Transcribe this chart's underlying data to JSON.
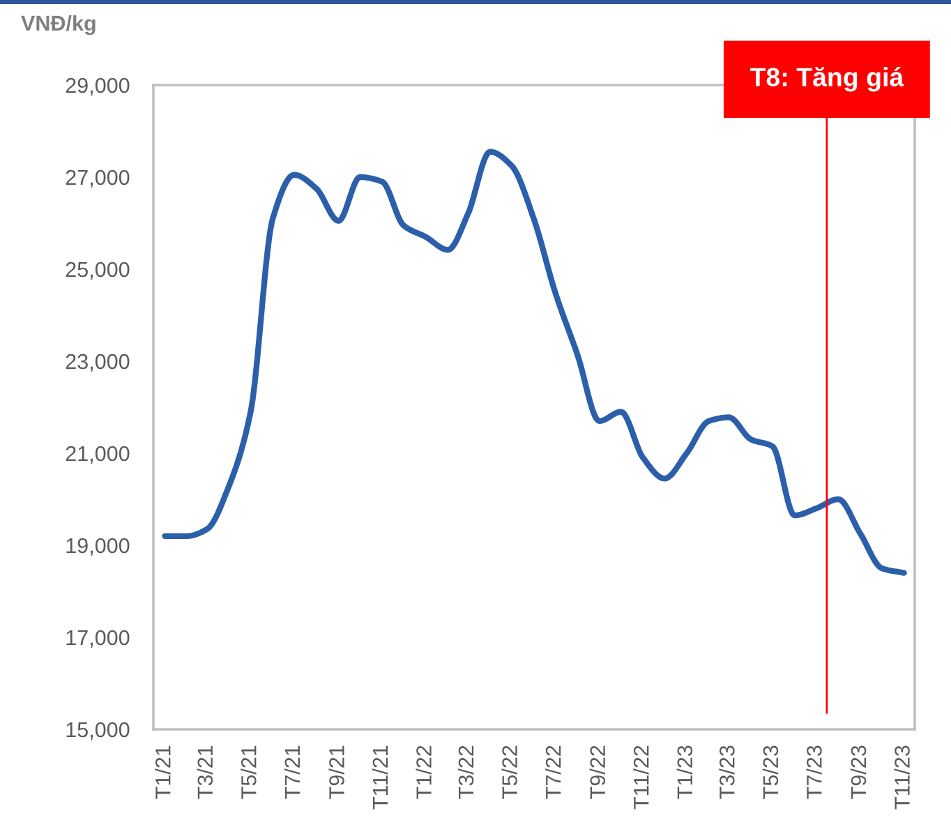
{
  "chart_data": {
    "type": "line",
    "ylabel": "VNĐ/kg",
    "x": [
      "2021-01",
      "2021-02",
      "2021-03",
      "2021-04",
      "2021-05",
      "2021-06",
      "2021-07",
      "2021-08",
      "2021-09",
      "2021-10",
      "2021-11",
      "2021-12",
      "2022-01",
      "2022-02",
      "2022-03",
      "2022-04",
      "2022-05",
      "2022-06",
      "2022-07",
      "2022-08",
      "2022-09",
      "2022-10",
      "2022-11",
      "2022-12",
      "2023-01",
      "2023-02",
      "2023-03",
      "2023-04",
      "2023-05",
      "2023-06",
      "2023-07",
      "2023-08",
      "2023-09",
      "2023-10",
      "2023-11"
    ],
    "series": [
      {
        "color": "#2c5faa",
        "values": [
          19200,
          19200,
          19350,
          20300,
          21900,
          26100,
          27050,
          26750,
          26050,
          27000,
          26900,
          25950,
          25700,
          25420,
          26200,
          27550,
          27250,
          26100,
          24500,
          23150,
          21700,
          21900,
          20900,
          20450,
          21000,
          21700,
          21780,
          21300,
          21150,
          19650,
          19800,
          20000,
          19250,
          18500,
          18400
        ]
      }
    ],
    "xlim": [
      "2020-12-16",
      "2023-11-16"
    ],
    "xticks": [
      {
        "value": "2021-01",
        "label": "T1/21"
      },
      {
        "value": "2021-03",
        "label": "T3/21"
      },
      {
        "value": "2021-05",
        "label": "T5/21"
      },
      {
        "value": "2021-07",
        "label": "T7/21"
      },
      {
        "value": "2021-09",
        "label": "T9/21"
      },
      {
        "value": "2021-11",
        "label": "T11/21"
      },
      {
        "value": "2022-01",
        "label": "T1/22"
      },
      {
        "value": "2022-03",
        "label": "T3/22"
      },
      {
        "value": "2022-05",
        "label": "T5/22"
      },
      {
        "value": "2022-07",
        "label": "T7/22"
      },
      {
        "value": "2022-09",
        "label": "T9/22"
      },
      {
        "value": "2022-11",
        "label": "T11/22"
      },
      {
        "value": "2023-01",
        "label": "T1/23"
      },
      {
        "value": "2023-03",
        "label": "T3/23"
      },
      {
        "value": "2023-05",
        "label": "T5/23"
      },
      {
        "value": "2023-07",
        "label": "T7/23"
      },
      {
        "value": "2023-09",
        "label": "T9/23"
      },
      {
        "value": "2023-11",
        "label": "T11/23"
      }
    ],
    "ylim": [
      15000,
      29000
    ],
    "yticks": [
      {
        "value": 15000,
        "label": "15,000"
      },
      {
        "value": 17000,
        "label": "17,000"
      },
      {
        "value": 19000,
        "label": "19,000"
      },
      {
        "value": 21000,
        "label": "21,000"
      },
      {
        "value": 23000,
        "label": "23,000"
      },
      {
        "value": 25000,
        "label": "25,000"
      },
      {
        "value": 27000,
        "label": "27,000"
      },
      {
        "value": 29000,
        "label": "29,000"
      }
    ],
    "ref_lines": [
      {
        "axis": "x",
        "value": "2023-07-16",
        "label": "T8: Tăng giá",
        "color": "#ff0000"
      }
    ],
    "grid": false,
    "line_style": "solid"
  }
}
